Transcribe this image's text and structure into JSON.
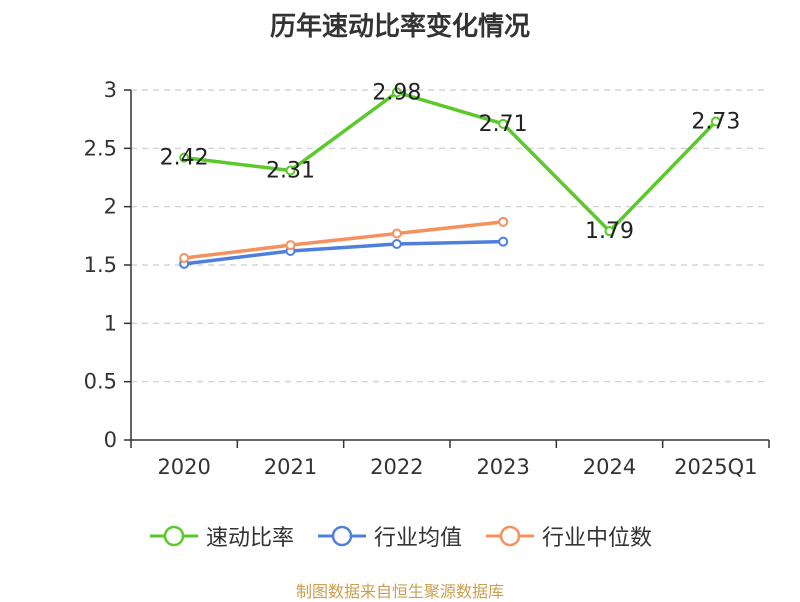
{
  "chart_data": {
    "type": "line",
    "title": "历年速动比率变化情况",
    "categories": [
      "2020",
      "2021",
      "2022",
      "2023",
      "2024",
      "2025Q1"
    ],
    "yticks": [
      "0",
      "0.5",
      "1",
      "1.5",
      "2",
      "2.5",
      "3"
    ],
    "ylim": [
      0,
      3
    ],
    "grid": true,
    "legend_position": "bottom",
    "series": [
      {
        "name": "速动比率",
        "color": "#5ac92a",
        "values": [
          2.42,
          2.31,
          2.98,
          2.71,
          1.79,
          2.73
        ],
        "labels": [
          "2.42",
          "2.31",
          "2.98",
          "2.71",
          "1.79",
          "2.73"
        ]
      },
      {
        "name": "行业均值",
        "color": "#4f7fdc",
        "values": [
          1.51,
          1.62,
          1.68,
          1.7,
          null,
          null
        ]
      },
      {
        "name": "行业中位数",
        "color": "#f5915c",
        "values": [
          1.56,
          1.67,
          1.77,
          1.87,
          null,
          null
        ]
      }
    ]
  },
  "source": "制图数据来自恒生聚源数据库"
}
